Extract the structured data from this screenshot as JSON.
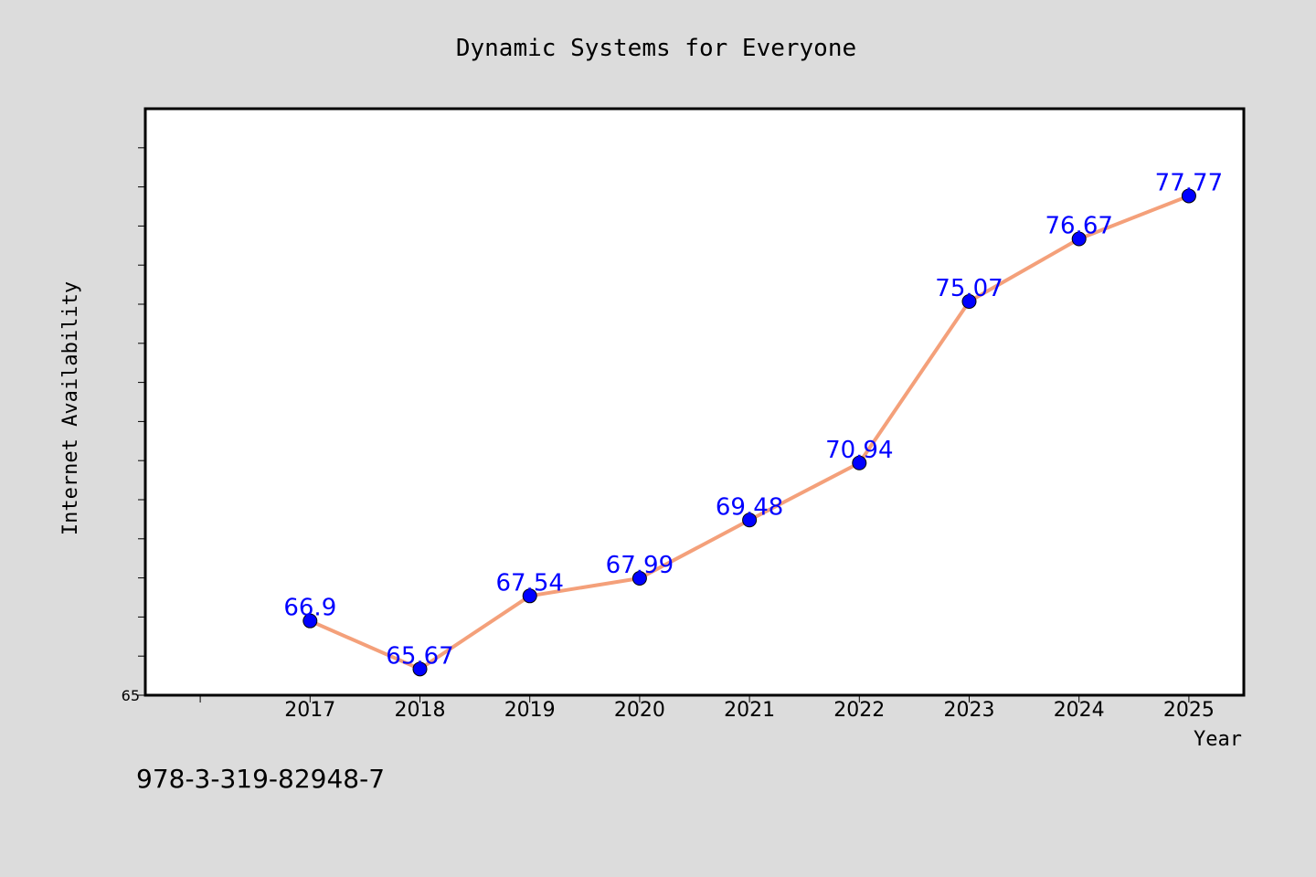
{
  "figure": {
    "background": "#dcdcdc",
    "footer_text": "978-3-319-82948-7"
  },
  "chart_data": {
    "type": "line",
    "title": "Dynamic Systems for Everyone",
    "xlabel": "Year",
    "ylabel": "Internet Availability",
    "x": [
      2017,
      2018,
      2019,
      2020,
      2021,
      2022,
      2023,
      2024,
      2025
    ],
    "x_tick_labels": [
      "2017",
      "2018",
      "2019",
      "2020",
      "2021",
      "2022",
      "2023",
      "2024",
      "2025"
    ],
    "xlim": [
      2015.5,
      2025.5
    ],
    "ylim": [
      65,
      80
    ],
    "y_tick_labels": [
      "65"
    ],
    "y_minor_step": 1,
    "grid": false,
    "series": [
      {
        "values": [
          66.9,
          65.67,
          67.54,
          67.99,
          69.48,
          70.94,
          75.07,
          76.67,
          77.77
        ],
        "data_labels": [
          "66.9",
          "65.67",
          "67.54",
          "67.99",
          "69.48",
          "70.94",
          "75.07",
          "76.67",
          "77.77"
        ],
        "line_color": "#f4a07a",
        "marker_color": "#0000ff",
        "label_color": "#0000ff"
      }
    ]
  }
}
